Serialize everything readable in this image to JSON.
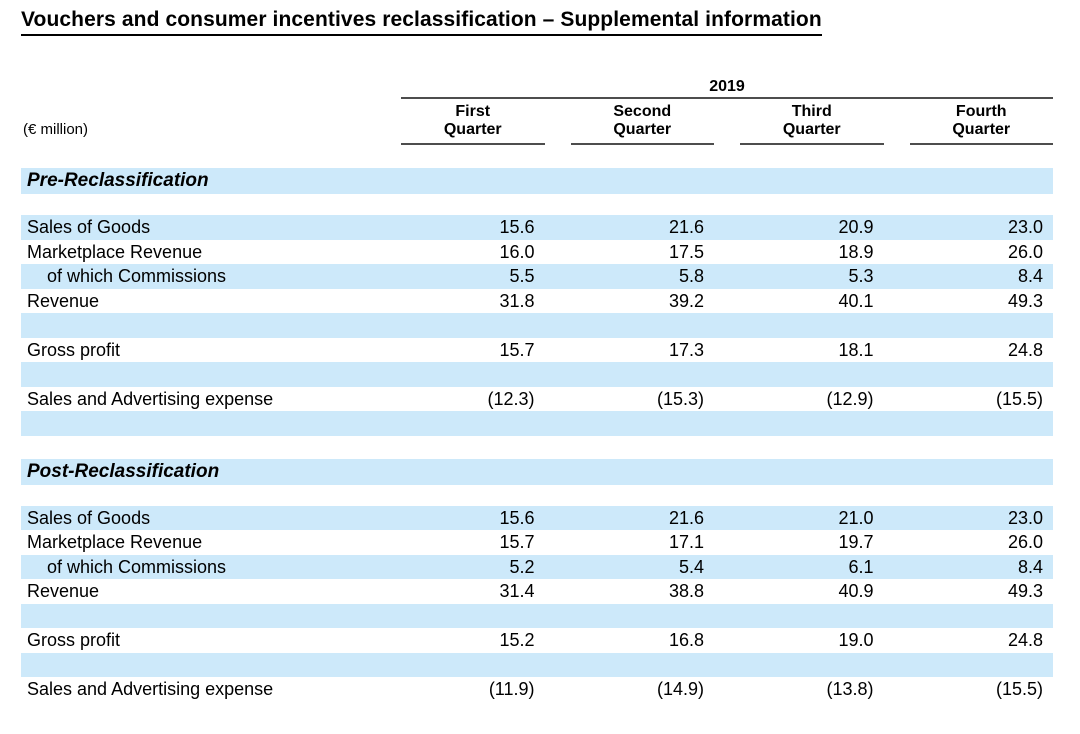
{
  "title": "Vouchers and consumer incentives reclassification – Supplemental information",
  "table": {
    "unit_label": "(€ million)",
    "year": "2019",
    "columns": [
      {
        "line1": "First",
        "line2": "Quarter"
      },
      {
        "line1": "Second",
        "line2": "Quarter"
      },
      {
        "line1": "Third",
        "line2": "Quarter"
      },
      {
        "line1": "Fourth",
        "line2": "Quarter"
      }
    ],
    "sections": [
      {
        "heading": "Pre-Reclassification",
        "rows": [
          {
            "label": "Sales of Goods",
            "indent": false,
            "shaded": true,
            "spacer": false,
            "values": [
              "15.6",
              "21.6",
              "20.9",
              "23.0"
            ]
          },
          {
            "label": "Marketplace Revenue",
            "indent": false,
            "shaded": false,
            "spacer": false,
            "values": [
              "16.0",
              "17.5",
              "18.9",
              "26.0"
            ]
          },
          {
            "label": "of which Commissions",
            "indent": true,
            "shaded": true,
            "spacer": false,
            "values": [
              "5.5",
              "5.8",
              "5.3",
              "8.4"
            ]
          },
          {
            "label": "Revenue",
            "indent": false,
            "shaded": false,
            "spacer": false,
            "values": [
              "31.8",
              "39.2",
              "40.1",
              "49.3"
            ]
          },
          {
            "label": "",
            "indent": false,
            "shaded": true,
            "spacer": true,
            "values": [
              "",
              "",
              "",
              ""
            ]
          },
          {
            "label": "Gross profit",
            "indent": false,
            "shaded": false,
            "spacer": false,
            "values": [
              "15.7",
              "17.3",
              "18.1",
              "24.8"
            ]
          },
          {
            "label": "",
            "indent": false,
            "shaded": true,
            "spacer": true,
            "values": [
              "",
              "",
              "",
              ""
            ]
          },
          {
            "label": "Sales and Advertising expense",
            "indent": false,
            "shaded": false,
            "spacer": false,
            "values": [
              "(12.3)",
              "(15.3)",
              "(12.9)",
              "(15.5)"
            ]
          },
          {
            "label": "",
            "indent": false,
            "shaded": true,
            "spacer": true,
            "values": [
              "",
              "",
              "",
              ""
            ]
          }
        ]
      },
      {
        "heading": "Post-Reclassification",
        "rows": [
          {
            "label": "Sales of Goods",
            "indent": false,
            "shaded": true,
            "spacer": false,
            "values": [
              "15.6",
              "21.6",
              "21.0",
              "23.0"
            ]
          },
          {
            "label": "Marketplace Revenue",
            "indent": false,
            "shaded": false,
            "spacer": false,
            "values": [
              "15.7",
              "17.1",
              "19.7",
              "26.0"
            ]
          },
          {
            "label": "of which Commissions",
            "indent": true,
            "shaded": true,
            "spacer": false,
            "values": [
              "5.2",
              "5.4",
              "6.1",
              "8.4"
            ]
          },
          {
            "label": "Revenue",
            "indent": false,
            "shaded": false,
            "spacer": false,
            "values": [
              "31.4",
              "38.8",
              "40.9",
              "49.3"
            ]
          },
          {
            "label": "",
            "indent": false,
            "shaded": true,
            "spacer": true,
            "values": [
              "",
              "",
              "",
              ""
            ]
          },
          {
            "label": "Gross profit",
            "indent": false,
            "shaded": false,
            "spacer": false,
            "values": [
              "15.2",
              "16.8",
              "19.0",
              "24.8"
            ]
          },
          {
            "label": "",
            "indent": false,
            "shaded": true,
            "spacer": true,
            "values": [
              "",
              "",
              "",
              ""
            ]
          },
          {
            "label": "Sales and Advertising expense",
            "indent": false,
            "shaded": false,
            "spacer": false,
            "values": [
              "(11.9)",
              "(14.9)",
              "(13.8)",
              "(15.5)"
            ]
          }
        ]
      }
    ]
  },
  "colors": {
    "row_shade": "#cde9fa",
    "rule": "#4d4d4d",
    "text": "#000000",
    "background": "#ffffff"
  }
}
